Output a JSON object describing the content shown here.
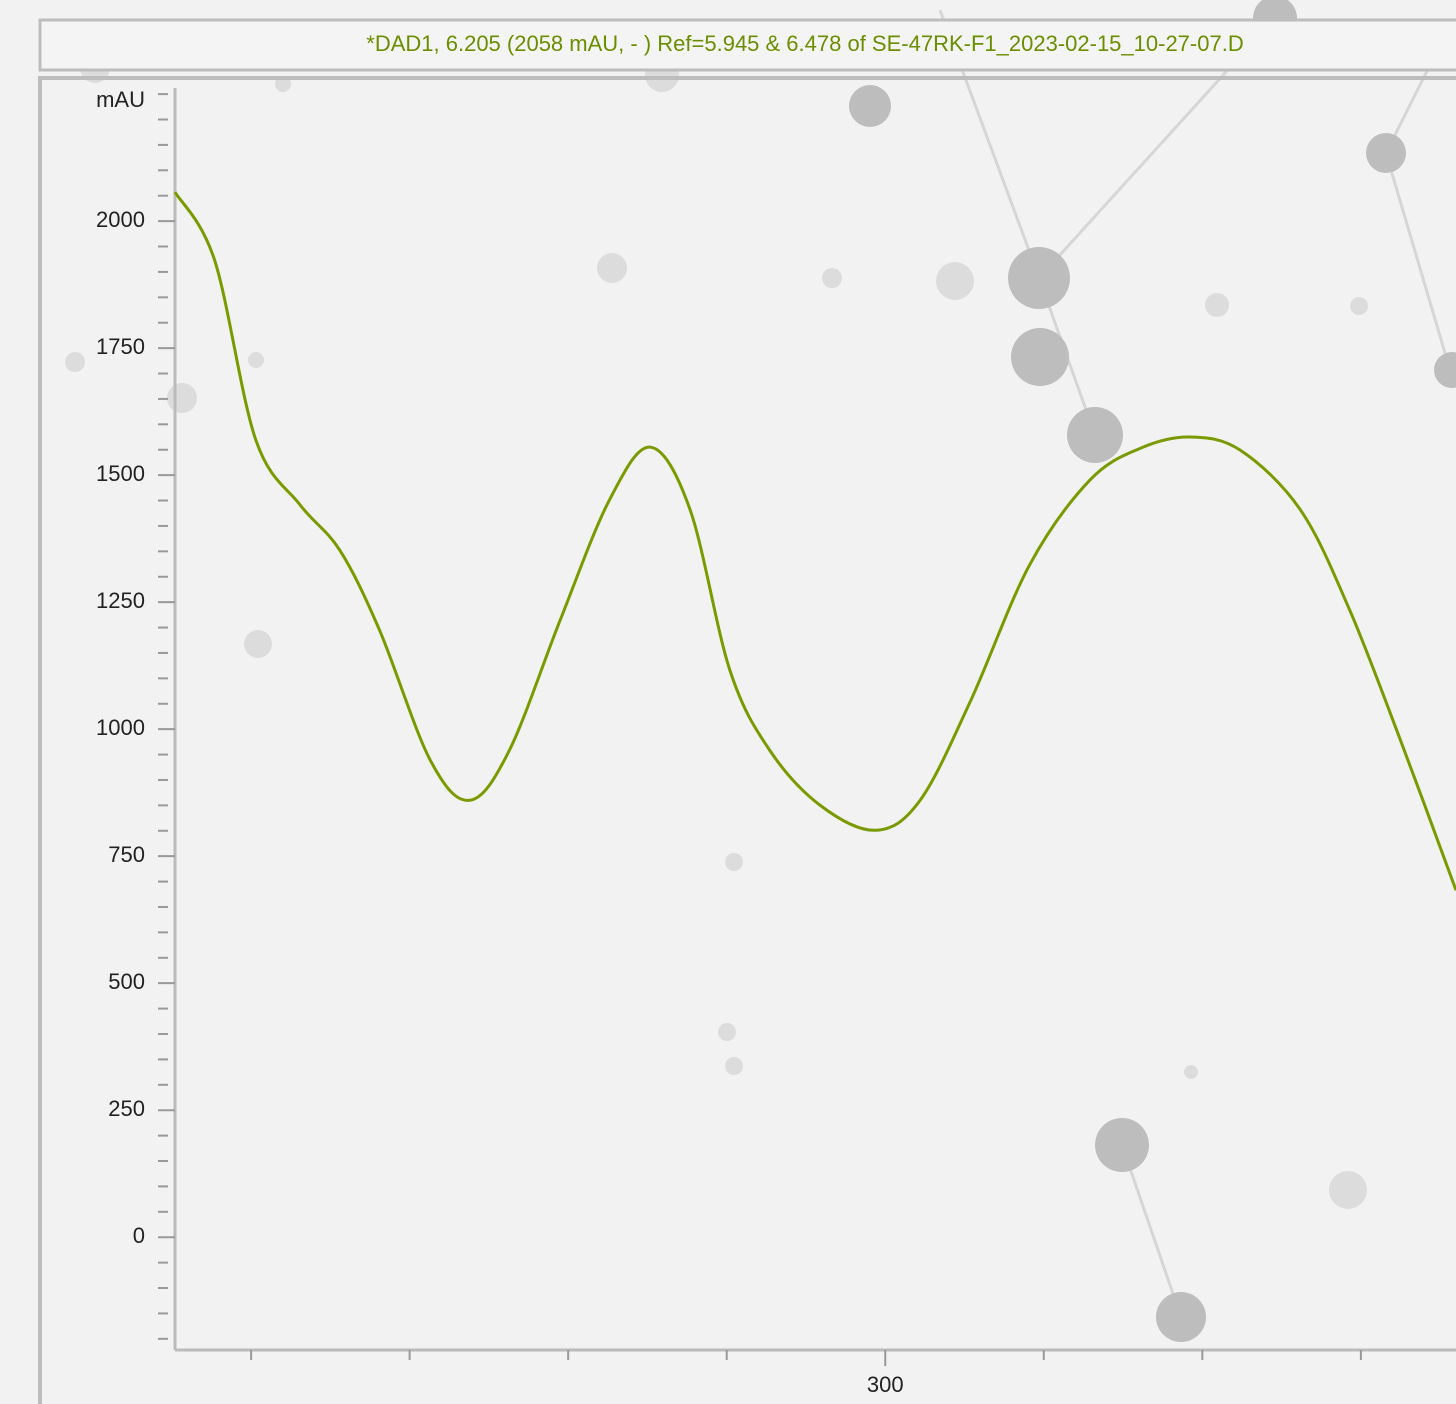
{
  "chart_data": {
    "type": "line",
    "title": "*DAD1, 6.205 (2058 mAU, - ) Ref=5.945 & 6.478 of SE-47RK-F1_2023-02-15_10-27-07.D",
    "ylabel": "mAU",
    "x": [
      255.2,
      257.7,
      260.3,
      263.1,
      265.6,
      268.1,
      271.3,
      273.8,
      276.3,
      279.5,
      282.6,
      285.2,
      287.7,
      290.2,
      292.7,
      295.9,
      299.4,
      302.2,
      305.4,
      309.1,
      312.9,
      316.1,
      319.2,
      322.4,
      326.2,
      329.3,
      332.5,
      336.0
    ],
    "series": [
      {
        "color": "#7a9a01",
        "values": [
          2057,
          1923,
          1569,
          1441,
          1352,
          1195,
          939,
          860,
          959,
          1215,
          1451,
          1555,
          1431,
          1116,
          959,
          850,
          801,
          860,
          1057,
          1323,
          1490,
          1553,
          1575,
          1549,
          1431,
          1234,
          978,
          683
        ]
      }
    ],
    "xlim": [
      255.2,
      336.0
    ],
    "ylim": [
      -222,
      2262
    ],
    "xticks": [
      300
    ],
    "xminorticks": [
      260,
      270,
      280,
      290,
      310,
      320,
      330
    ],
    "yticks": [
      0,
      250,
      500,
      750,
      1000,
      1250,
      1500,
      1750,
      2000
    ],
    "yminorticks": [
      -200,
      -150,
      -100,
      -50,
      50,
      100,
      150,
      200,
      300,
      350,
      400,
      450,
      550,
      600,
      650,
      700,
      800,
      850,
      900,
      950,
      1050,
      1100,
      1150,
      1200,
      1300,
      1350,
      1400,
      1450,
      1550,
      1600,
      1650,
      1700,
      1800,
      1850,
      1900,
      1950,
      2050,
      2100,
      2150,
      2200,
      2250
    ],
    "text_color": "#6b8e00"
  }
}
